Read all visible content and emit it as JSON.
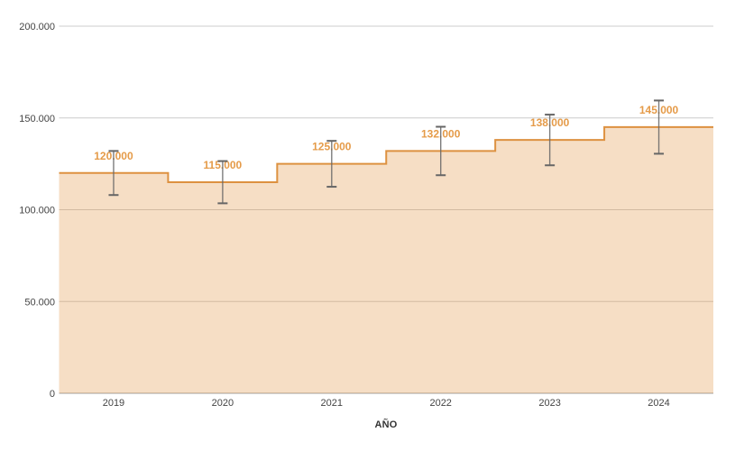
{
  "page": {
    "background": "#ffffff"
  },
  "chart_data": {
    "type": "stepped-area",
    "title": "",
    "x_axis_title": "AÑO",
    "y_axis_title": "",
    "legend": "none",
    "grid": true,
    "ylim": [
      0,
      200000
    ],
    "categories": [
      "2019",
      "2020",
      "2021",
      "2022",
      "2023",
      "2024"
    ],
    "series": [
      {
        "values": [
          120000,
          115000,
          125000,
          132000,
          138000,
          145000
        ],
        "value_labels": [
          "120.000",
          "115.000",
          "125.000",
          "132.000",
          "138.000",
          "145.000"
        ],
        "interval_low": [
          108000,
          103500,
          112500,
          118800,
          124200,
          130500
        ],
        "interval_high": [
          132000,
          126500,
          137500,
          145200,
          151800,
          159500
        ]
      }
    ],
    "y_ticks": {
      "values": [
        0,
        50000,
        100000,
        150000,
        200000
      ],
      "labels": [
        "0",
        "50.000",
        "100.000",
        "150.000",
        "200.000"
      ]
    },
    "colors": {
      "series_line": "#dd9140",
      "series_fill": "#e0923f",
      "series_fill_opacity": 0.3,
      "annotation_text": "#e59b49",
      "interval_bar": "#666666",
      "gridline": "#cccccc",
      "baseline": "#9e9e9e",
      "tick_text": "#444444",
      "axis_title_text": "#333333"
    }
  }
}
